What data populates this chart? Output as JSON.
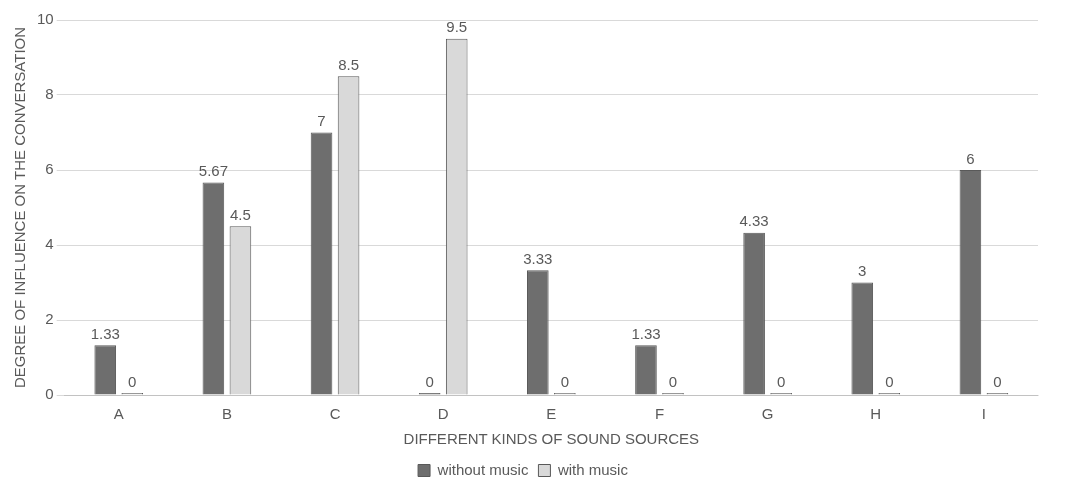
{
  "chart_data": {
    "type": "bar",
    "xlabel": "DIFFERENT KINDS OF SOUND SOURCES",
    "ylabel": "DEGREE OF INFLUENCE ON THE CONVERSATION",
    "categories": [
      "A",
      "B",
      "C",
      "D",
      "E",
      "F",
      "G",
      "H",
      "I"
    ],
    "series": [
      {
        "name": "without music",
        "color": "#6e6e6e",
        "values": [
          1.33,
          5.67,
          7,
          0,
          3.33,
          1.33,
          4.33,
          3,
          6
        ]
      },
      {
        "name": "with music",
        "color": "#d9d9d9",
        "values": [
          0,
          4.5,
          8.5,
          9.5,
          0,
          0,
          0,
          0,
          0
        ]
      }
    ],
    "ylim": [
      0,
      10
    ],
    "yticks": [
      0,
      2,
      4,
      6,
      8,
      10
    ],
    "grid": "y",
    "legend": "bottom",
    "data_labels": true
  }
}
